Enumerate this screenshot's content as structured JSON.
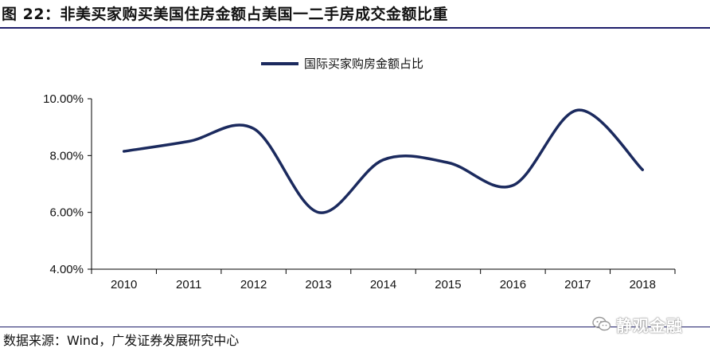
{
  "figure": {
    "title": "图 22：非美买家购买美国住房金额占美国一二手房成交金额比重",
    "source": "数据来源：Wind，广发证券发展研究中心",
    "watermark": "静观金融",
    "watermark_icon": "wechat-icon"
  },
  "chart_data": {
    "type": "line",
    "categories": [
      "2010",
      "2011",
      "2012",
      "2013",
      "2014",
      "2015",
      "2016",
      "2017",
      "2018"
    ],
    "series": [
      {
        "name": "国际买家购房金额占比",
        "values": [
          8.15,
          8.5,
          8.95,
          6.0,
          7.85,
          7.75,
          6.95,
          9.6,
          7.5
        ],
        "color": "#1b2a5e"
      }
    ],
    "ylim": [
      4,
      10
    ],
    "yticks": [
      4,
      6,
      8,
      10
    ],
    "ytick_labels": [
      "4.00%",
      "6.00%",
      "8.00%",
      "10.00%"
    ],
    "smooth": true,
    "legend": "top-center",
    "grid": false
  }
}
